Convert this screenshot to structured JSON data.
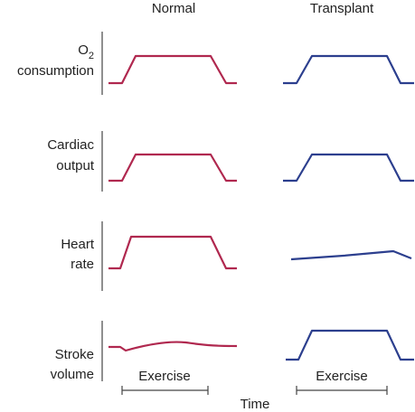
{
  "header": {
    "columns": [
      "Normal",
      "Transplant"
    ]
  },
  "rows": [
    {
      "label_lines": [
        {
          "main": "O",
          "sub": "2"
        },
        "consumption"
      ]
    },
    {
      "label_lines": [
        "Cardiac",
        "output"
      ]
    },
    {
      "label_lines": [
        "Heart",
        "rate"
      ]
    },
    {
      "label_lines": [
        "Stroke",
        "volume"
      ]
    }
  ],
  "footer": {
    "exercise": [
      "Exercise",
      "Exercise"
    ],
    "axis_label": "Time"
  }
}
